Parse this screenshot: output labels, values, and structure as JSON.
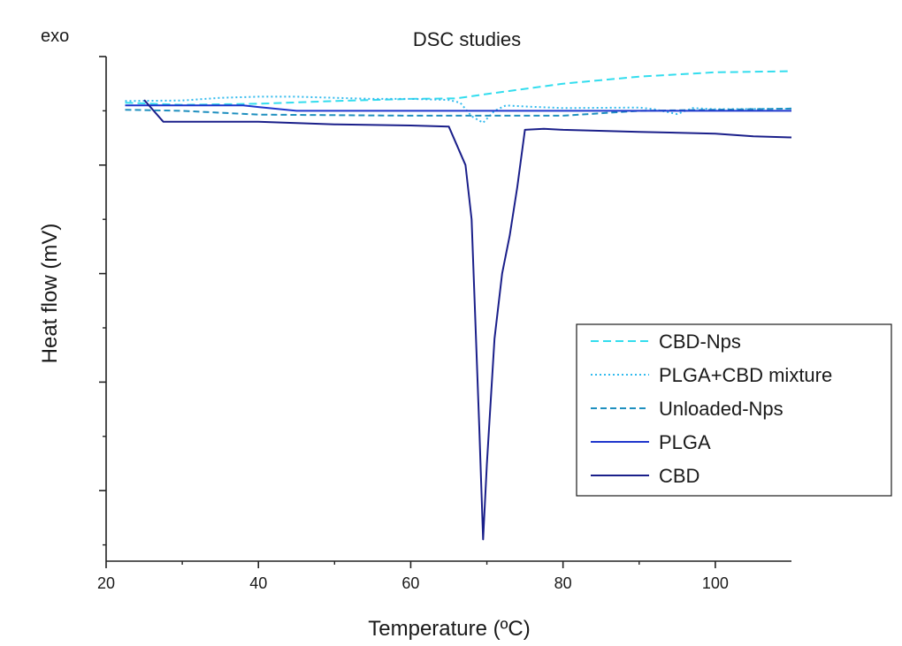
{
  "chart_data": {
    "type": "line",
    "title": "DSC studies",
    "corner_label": "exo",
    "xlabel": "Temperature (ºC)",
    "ylabel": "Heat flow (mV)",
    "xlim": [
      20,
      110
    ],
    "ylim": [
      -8.3,
      1.0
    ],
    "x_ticks": [
      20,
      40,
      60,
      80,
      100
    ],
    "y_ticks_major": [
      1,
      -1,
      -3,
      -5,
      -7
    ],
    "y_ticks_minor": [
      0,
      -2,
      -4,
      -6,
      -8
    ],
    "show_y_tick_labels": false,
    "grid": false,
    "legend_position": "right",
    "series": [
      {
        "name": "CBD-Nps",
        "color": "#33ddee",
        "dash": "9,5",
        "width": 2,
        "points": [
          [
            22.5,
            0.15
          ],
          [
            30,
            0.11
          ],
          [
            40,
            0.13
          ],
          [
            50,
            0.18
          ],
          [
            60,
            0.22
          ],
          [
            66,
            0.23
          ],
          [
            70,
            0.31
          ],
          [
            80,
            0.5
          ],
          [
            90,
            0.63
          ],
          [
            100,
            0.71
          ],
          [
            110,
            0.73
          ]
        ]
      },
      {
        "name": "PLGA+CBD mixture",
        "color": "#33bbee",
        "dash": "2,3",
        "width": 2,
        "points": [
          [
            22.5,
            0.18
          ],
          [
            30,
            0.19
          ],
          [
            35,
            0.24
          ],
          [
            40,
            0.26
          ],
          [
            45,
            0.26
          ],
          [
            50,
            0.24
          ],
          [
            55,
            0.22
          ],
          [
            60,
            0.22
          ],
          [
            65,
            0.2
          ],
          [
            66.5,
            0.15
          ],
          [
            68,
            -0.1
          ],
          [
            69.5,
            -0.22
          ],
          [
            71,
            0.0
          ],
          [
            72.5,
            0.1
          ],
          [
            75,
            0.08
          ],
          [
            80,
            0.05
          ],
          [
            90,
            0.06
          ],
          [
            92,
            0.03
          ],
          [
            95,
            -0.06
          ],
          [
            97,
            0.05
          ],
          [
            100,
            0.03
          ],
          [
            110,
            0.04
          ]
        ]
      },
      {
        "name": "Unloaded-Nps",
        "color": "#1e8fbf",
        "dash": "7,4",
        "width": 2,
        "points": [
          [
            22.5,
            0.02
          ],
          [
            30,
            0.0
          ],
          [
            40,
            -0.07
          ],
          [
            50,
            -0.08
          ],
          [
            60,
            -0.09
          ],
          [
            70,
            -0.09
          ],
          [
            80,
            -0.09
          ],
          [
            90,
            0.0
          ],
          [
            100,
            0.02
          ],
          [
            110,
            0.04
          ]
        ]
      },
      {
        "name": "PLGA",
        "color": "#1f36cc",
        "dash": "",
        "width": 2,
        "points": [
          [
            22.5,
            0.1
          ],
          [
            30,
            0.1
          ],
          [
            38,
            0.1
          ],
          [
            40,
            0.07
          ],
          [
            45,
            0.0
          ],
          [
            50,
            0.0
          ],
          [
            60,
            0.0
          ],
          [
            70,
            0.0
          ],
          [
            80,
            0.0
          ],
          [
            90,
            0.0
          ],
          [
            100,
            0.0
          ],
          [
            110,
            0.0
          ]
        ]
      },
      {
        "name": "CBD",
        "color": "#1a1f8a",
        "dash": "",
        "width": 2,
        "points": [
          [
            25,
            0.2
          ],
          [
            27.5,
            -0.2
          ],
          [
            30,
            -0.2
          ],
          [
            40,
            -0.2
          ],
          [
            50,
            -0.25
          ],
          [
            60,
            -0.27
          ],
          [
            65,
            -0.29
          ],
          [
            67.2,
            -1.0
          ],
          [
            68,
            -2.0
          ],
          [
            69,
            -5.8
          ],
          [
            69.5,
            -7.9
          ],
          [
            70,
            -6.5
          ],
          [
            71,
            -4.2
          ],
          [
            72,
            -3.0
          ],
          [
            73,
            -2.3
          ],
          [
            74,
            -1.4
          ],
          [
            75,
            -0.35
          ],
          [
            77.5,
            -0.33
          ],
          [
            80,
            -0.35
          ],
          [
            90,
            -0.39
          ],
          [
            100,
            -0.42
          ],
          [
            105,
            -0.47
          ],
          [
            110,
            -0.49
          ]
        ]
      }
    ]
  }
}
